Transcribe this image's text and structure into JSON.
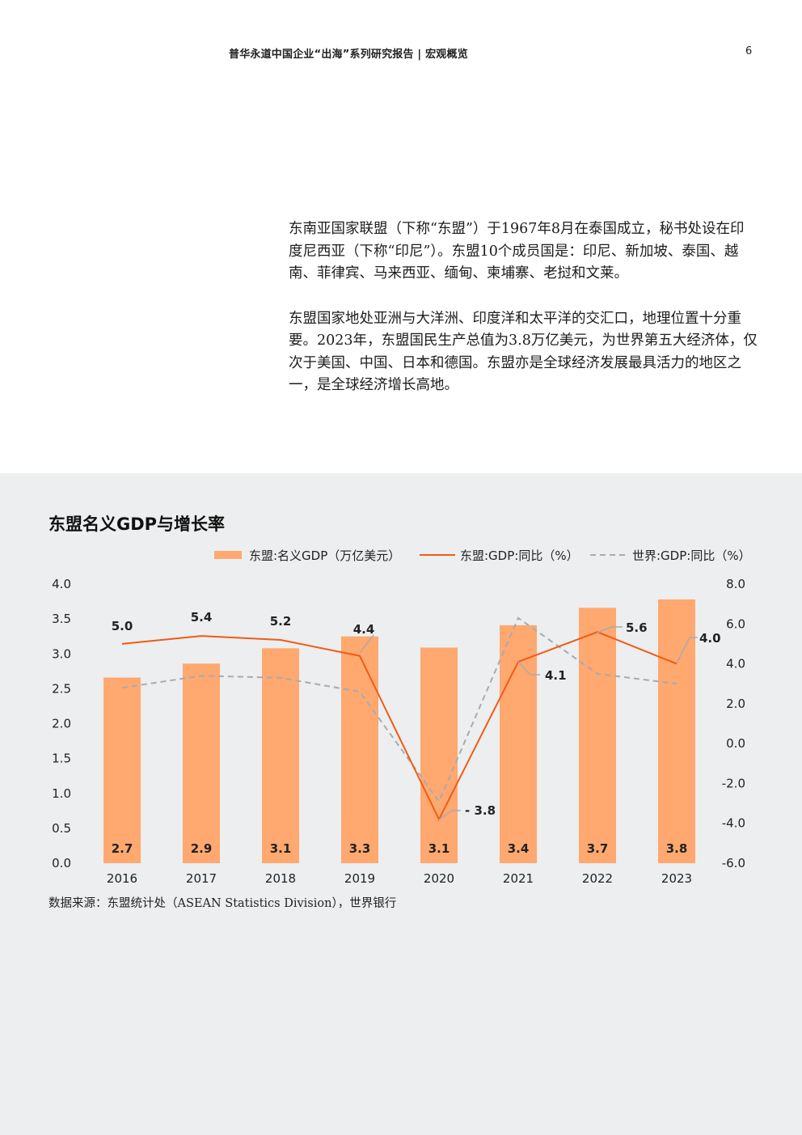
{
  "header": {
    "title": "普华永道中国企业“出海”系列研究报告 | 宏观概览",
    "page_number": "6"
  },
  "intro": {
    "paragraphs": [
      "东南亚国家联盟（下称“东盟”）于1967年8月在泰国成立，秘书处设在印度尼西亚（下称“印尼”）。东盟10个成员国是：印尼、新加坡、泰国、越南、菲律宾、马来西亚、缅甸、柬埔寨、老挝和文莱。",
      "东盟国家地处亚洲与大洋洲、印度洋和太平洋的交汇口，地理位置十分重要。2023年，东盟国民生产总值为3.8万亿美元，为世界第五大经济体，仅次于美国、中国、日本和德国。东盟亦是全球经济发展最具活力的地区之一，是全球经济增长高地。"
    ]
  },
  "chart": {
    "title": "东盟名义GDP与增长率",
    "source": "数据来源：东盟统计处（ASEAN Statistics Division），世界银行",
    "legend": {
      "gdp": "东盟:名义GDP（万亿美元）",
      "asean_growth": "东盟:GDP:同比（%）",
      "world_growth": "世界:GDP:同比（%）"
    },
    "colors": {
      "bar": "#ffa86f",
      "asean_line": "#f25a14",
      "world_line": "#a7abb0",
      "background": "#eceeef"
    }
  },
  "chart_data": {
    "type": "bar",
    "title": "东盟名义GDP与增长率",
    "categories": [
      "2016",
      "2017",
      "2018",
      "2019",
      "2020",
      "2021",
      "2022",
      "2023"
    ],
    "left_axis": {
      "ylim": [
        0,
        4
      ],
      "ticks": [
        "0.0",
        "0.5",
        "1.0",
        "1.5",
        "2.0",
        "2.5",
        "3.0",
        "3.5",
        "4.0"
      ]
    },
    "right_axis": {
      "ylim": [
        -6,
        8
      ],
      "ticks": [
        "-6.0",
        "-4.0",
        "-2.0",
        "0.0",
        "2.0",
        "4.0",
        "6.0",
        "8.0"
      ]
    },
    "series": [
      {
        "name": "东盟:名义GDP（万亿美元）",
        "type": "bar",
        "axis": "left",
        "values": [
          2.66,
          2.86,
          3.08,
          3.25,
          3.09,
          3.41,
          3.66,
          3.78
        ],
        "labels": [
          "2.7",
          "2.9",
          "3.1",
          "3.3",
          "3.1",
          "3.4",
          "3.7",
          "3.8"
        ]
      },
      {
        "name": "东盟:GDP:同比（%）",
        "type": "line",
        "axis": "right",
        "values": [
          5.0,
          5.4,
          5.2,
          4.4,
          -3.8,
          4.1,
          5.6,
          4.0
        ],
        "labels": [
          "5.0",
          "5.4",
          "5.2",
          "4.4",
          "- 3.8",
          "4.1",
          "5.6",
          "4.0"
        ]
      },
      {
        "name": "世界:GDP:同比（%）",
        "type": "line",
        "style": "dashed",
        "axis": "right",
        "values": [
          2.8,
          3.4,
          3.3,
          2.6,
          -2.9,
          6.3,
          3.5,
          3.0
        ]
      }
    ]
  }
}
